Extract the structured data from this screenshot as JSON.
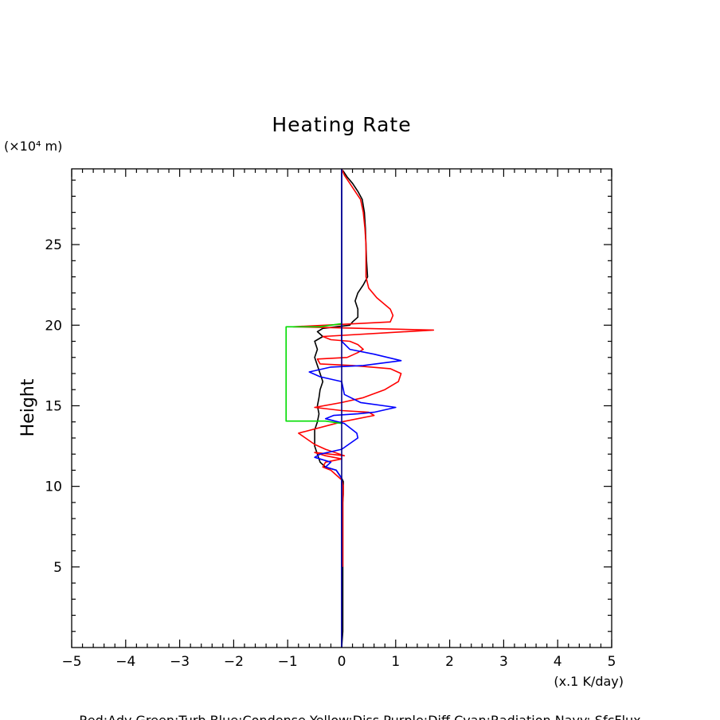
{
  "chart_data": {
    "type": "line",
    "title": "Heating Rate",
    "ylabel": "Height",
    "yunit": "(×10⁴ m)",
    "xunit": "(x.1 K/day)",
    "legend_text": "Red:Adv  Green:Turb  Blue:Condense  Yellow:Diss  Purple:Diff  Cyan:Radiation  Navy: SfcFlux",
    "xlim": [
      -5,
      5
    ],
    "ylim": [
      0,
      29.7
    ],
    "xticks": [
      -5,
      -4,
      -3,
      -2,
      -1,
      0,
      1,
      2,
      3,
      4,
      5
    ],
    "xticklabels": [
      "−5",
      "−4",
      "−3",
      "−2",
      "−1",
      "0",
      "1",
      "2",
      "3",
      "4",
      "5"
    ],
    "yticks": [
      5,
      10,
      15,
      20,
      25
    ],
    "yticklabels": [
      "5",
      "10",
      "15",
      "20",
      "25"
    ],
    "series": [
      {
        "color": "#000000",
        "points": [
          [
            0.0,
            0.0
          ],
          [
            0.02,
            1.0
          ],
          [
            0.02,
            2.0
          ],
          [
            0.02,
            3.0
          ],
          [
            0.02,
            4.0
          ],
          [
            0.02,
            5.0
          ],
          [
            0.02,
            6.0
          ],
          [
            0.02,
            7.0
          ],
          [
            0.02,
            8.0
          ],
          [
            0.02,
            9.0
          ],
          [
            0.03,
            9.5
          ],
          [
            0.03,
            10.0
          ],
          [
            0.03,
            10.3
          ],
          [
            0.0,
            10.5
          ],
          [
            -0.1,
            11.0
          ],
          [
            -0.3,
            11.2
          ],
          [
            -0.4,
            11.5
          ],
          [
            -0.45,
            12.0
          ],
          [
            -0.5,
            12.5
          ],
          [
            -0.5,
            13.0
          ],
          [
            -0.5,
            13.5
          ],
          [
            -0.45,
            14.0
          ],
          [
            -0.42,
            14.5
          ],
          [
            -0.45,
            15.0
          ],
          [
            -0.42,
            15.5
          ],
          [
            -0.4,
            16.0
          ],
          [
            -0.35,
            16.5
          ],
          [
            -0.4,
            17.0
          ],
          [
            -0.45,
            17.5
          ],
          [
            -0.5,
            18.0
          ],
          [
            -0.45,
            18.5
          ],
          [
            -0.5,
            19.0
          ],
          [
            -0.35,
            19.3
          ],
          [
            -0.45,
            19.6
          ],
          [
            -0.35,
            19.8
          ],
          [
            0.15,
            20.0
          ],
          [
            0.2,
            20.2
          ],
          [
            0.3,
            20.5
          ],
          [
            0.3,
            21.0
          ],
          [
            0.25,
            21.5
          ],
          [
            0.3,
            22.0
          ],
          [
            0.4,
            22.5
          ],
          [
            0.48,
            23.0
          ],
          [
            0.46,
            24.0
          ],
          [
            0.45,
            25.0
          ],
          [
            0.44,
            26.0
          ],
          [
            0.42,
            27.0
          ],
          [
            0.38,
            27.8
          ],
          [
            0.3,
            28.3
          ],
          [
            0.2,
            28.8
          ],
          [
            0.1,
            29.2
          ],
          [
            0.02,
            29.6
          ]
        ]
      },
      {
        "color": "#ff0000",
        "points": [
          [
            0.02,
            5.0
          ],
          [
            0.02,
            6.0
          ],
          [
            0.02,
            7.0
          ],
          [
            0.02,
            8.0
          ],
          [
            0.02,
            9.0
          ],
          [
            0.03,
            10.0
          ],
          [
            0.0,
            10.4
          ],
          [
            -0.2,
            11.0
          ],
          [
            -0.35,
            11.2
          ],
          [
            -0.3,
            11.5
          ],
          [
            0.0,
            11.7
          ],
          [
            -0.3,
            11.9
          ],
          [
            -0.5,
            12.1
          ],
          [
            0.05,
            11.9
          ],
          [
            -0.3,
            12.3
          ],
          [
            -0.5,
            12.6
          ],
          [
            -0.8,
            13.3
          ],
          [
            0.0,
            14.0
          ],
          [
            0.6,
            14.4
          ],
          [
            0.5,
            14.6
          ],
          [
            0.0,
            14.7
          ],
          [
            -0.5,
            14.9
          ],
          [
            0.0,
            15.2
          ],
          [
            0.4,
            15.5
          ],
          [
            0.8,
            16.0
          ],
          [
            1.05,
            16.5
          ],
          [
            1.1,
            17.0
          ],
          [
            0.9,
            17.3
          ],
          [
            0.2,
            17.5
          ],
          [
            -0.4,
            17.6
          ],
          [
            -0.45,
            17.9
          ],
          [
            0.1,
            18.0
          ],
          [
            0.3,
            18.3
          ],
          [
            0.4,
            18.5
          ],
          [
            0.3,
            18.8
          ],
          [
            0.15,
            19.0
          ],
          [
            -0.2,
            19.1
          ],
          [
            -0.35,
            19.3
          ],
          [
            1.7,
            19.7
          ],
          [
            -0.9,
            19.9
          ],
          [
            0.9,
            20.2
          ],
          [
            0.95,
            20.6
          ],
          [
            0.9,
            21.0
          ],
          [
            0.65,
            21.7
          ],
          [
            0.5,
            22.3
          ],
          [
            0.45,
            23.0
          ],
          [
            0.45,
            24.0
          ],
          [
            0.45,
            25.0
          ],
          [
            0.43,
            26.0
          ],
          [
            0.4,
            27.0
          ],
          [
            0.35,
            27.8
          ],
          [
            0.25,
            28.3
          ],
          [
            0.15,
            28.8
          ],
          [
            0.05,
            29.3
          ],
          [
            0.0,
            29.7
          ]
        ]
      },
      {
        "color": "#0000ff",
        "points": [
          [
            0.0,
            0.0
          ],
          [
            0.0,
            10.5
          ],
          [
            -0.1,
            11.0
          ],
          [
            -0.3,
            11.2
          ],
          [
            -0.2,
            11.5
          ],
          [
            -0.5,
            11.8
          ],
          [
            -0.4,
            12.0
          ],
          [
            0.0,
            12.3
          ],
          [
            0.3,
            13.0
          ],
          [
            0.28,
            13.3
          ],
          [
            0.05,
            13.9
          ],
          [
            -0.3,
            14.2
          ],
          [
            -0.15,
            14.4
          ],
          [
            0.3,
            14.5
          ],
          [
            0.6,
            14.6
          ],
          [
            1.0,
            14.9
          ],
          [
            0.35,
            15.2
          ],
          [
            0.05,
            15.7
          ],
          [
            0.0,
            16.5
          ],
          [
            -0.4,
            16.8
          ],
          [
            -0.6,
            17.1
          ],
          [
            -0.2,
            17.4
          ],
          [
            0.4,
            17.5
          ],
          [
            1.1,
            17.8
          ],
          [
            0.6,
            18.2
          ],
          [
            0.15,
            18.5
          ],
          [
            0.0,
            19.0
          ],
          [
            0.0,
            29.7
          ]
        ]
      },
      {
        "color": "#00dd00",
        "points": [
          [
            0.0,
            13.9
          ],
          [
            -0.3,
            14.05
          ],
          [
            -1.03,
            14.05
          ],
          [
            -1.03,
            19.9
          ],
          [
            -0.4,
            19.9
          ],
          [
            0.0,
            20.1
          ]
        ]
      },
      {
        "color": "#000080",
        "points": [
          [
            0.0,
            0.0
          ],
          [
            0.0,
            29.7
          ]
        ]
      }
    ]
  }
}
